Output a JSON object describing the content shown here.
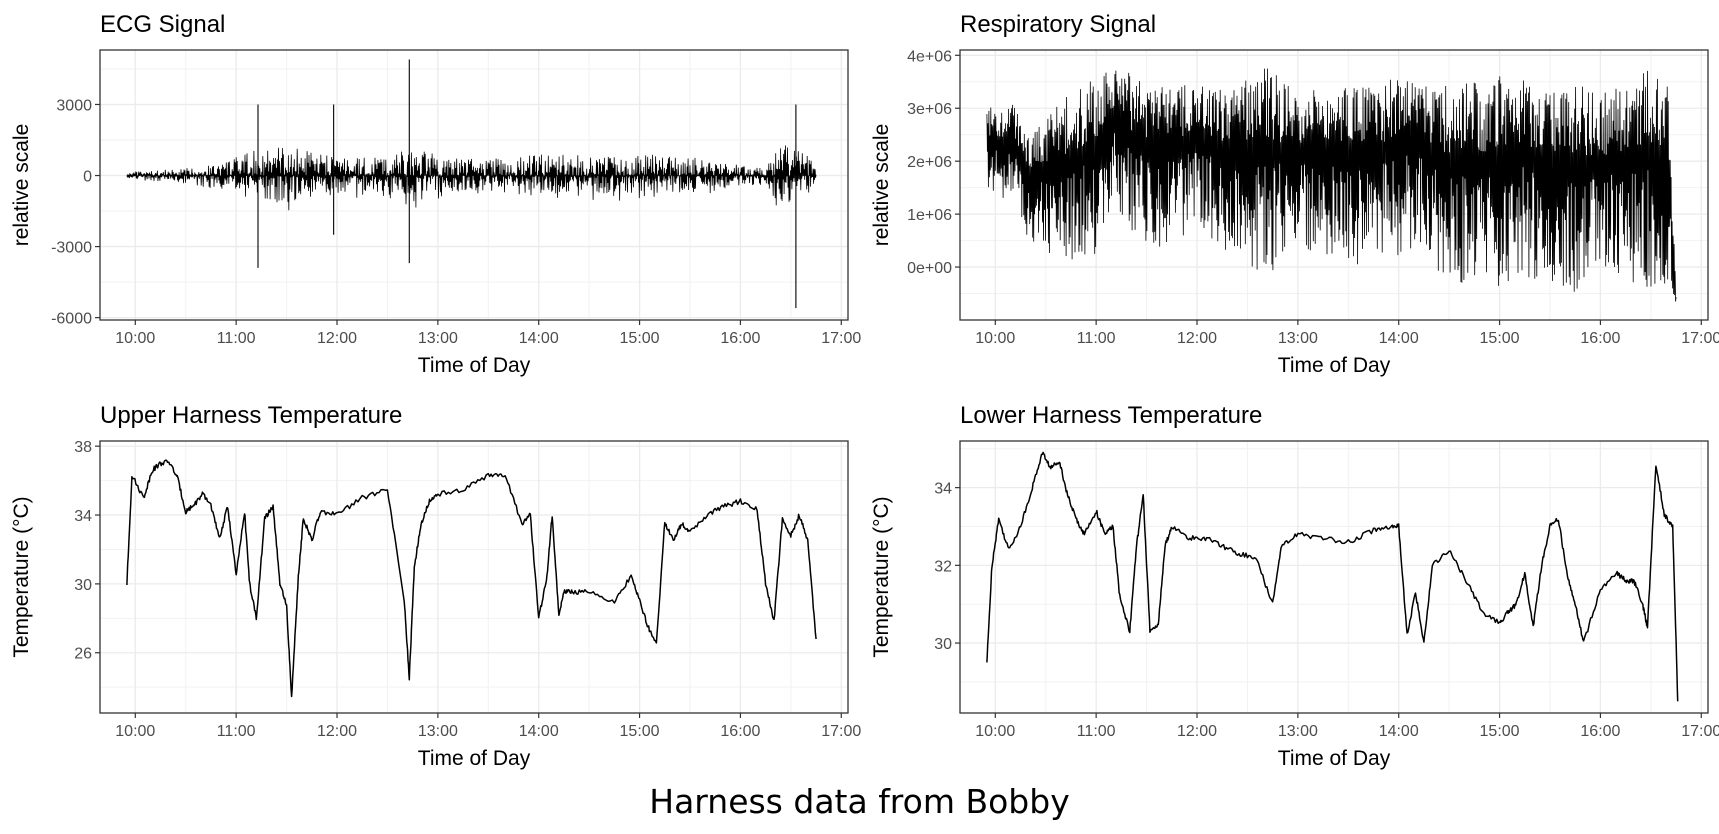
{
  "caption": "Harness data from Bobby",
  "chart_data": [
    {
      "type": "line",
      "title": "ECG Signal",
      "xlabel": "Time of Day",
      "ylabel": "relative scale",
      "x_ticks": [
        "10:00",
        "11:00",
        "12:00",
        "13:00",
        "14:00",
        "15:00",
        "16:00",
        "17:00"
      ],
      "y_ticks": [
        "3000",
        "0",
        "-3000",
        "-6000"
      ],
      "y_tick_values": [
        3000,
        0,
        -3000,
        -6000
      ],
      "xlim": [
        "09:39",
        "17:04"
      ],
      "ylim": [
        -6100,
        5300
      ],
      "grid": true,
      "style": "dense-oscillating",
      "series": [
        {
          "x": [
            "09:55",
            "10:30",
            "10:55",
            "11:15",
            "11:30",
            "11:45",
            "12:00",
            "12:30",
            "12:45",
            "13:00",
            "13:30",
            "14:00",
            "14:30",
            "15:00",
            "15:30",
            "16:00",
            "16:15",
            "16:20",
            "16:30",
            "16:40",
            "16:45"
          ],
          "center": [
            0,
            0,
            0,
            0,
            0,
            0,
            0,
            0,
            0,
            0,
            0,
            0,
            0,
            0,
            0,
            0,
            0,
            0,
            0,
            0,
            0
          ],
          "amplitude": [
            150,
            300,
            650,
            1200,
            1300,
            1000,
            800,
            850,
            1200,
            850,
            700,
            900,
            950,
            950,
            800,
            500,
            350,
            1200,
            1300,
            1000,
            200
          ]
        }
      ],
      "spikes": [
        {
          "x": "11:13",
          "min": -3900,
          "max": 3000
        },
        {
          "x": "11:58",
          "min": -2500,
          "max": 3000
        },
        {
          "x": "12:43",
          "min": -3700,
          "max": 4900
        },
        {
          "x": "16:33",
          "min": -5600,
          "max": 3000
        }
      ]
    },
    {
      "type": "line",
      "title": "Respiratory Signal",
      "xlabel": "Time of Day",
      "ylabel": "relative scale",
      "x_ticks": [
        "10:00",
        "11:00",
        "12:00",
        "13:00",
        "14:00",
        "15:00",
        "16:00",
        "17:00"
      ],
      "y_ticks": [
        "4e+06",
        "3e+06",
        "2e+06",
        "1e+06",
        "0e+00"
      ],
      "y_tick_values": [
        4000000,
        3000000,
        2000000,
        1000000,
        0
      ],
      "xlim": [
        "09:39",
        "17:04"
      ],
      "ylim": [
        -1000000,
        4100000
      ],
      "grid": true,
      "style": "dense-oscillating",
      "series": [
        {
          "x": [
            "09:55",
            "10:10",
            "10:20",
            "10:40",
            "11:00",
            "11:10",
            "11:20",
            "11:40",
            "12:00",
            "12:20",
            "12:40",
            "13:00",
            "13:20",
            "13:40",
            "14:00",
            "14:10",
            "14:30",
            "15:00",
            "15:10",
            "15:30",
            "15:45",
            "16:00",
            "16:20",
            "16:30",
            "16:40",
            "16:45"
          ],
          "top": [
            3000000,
            3100000,
            2500000,
            3200000,
            3600000,
            3800000,
            3700000,
            3400000,
            3500000,
            3400000,
            3850000,
            3300000,
            3400000,
            3400000,
            3700000,
            3600000,
            3400000,
            3600000,
            3700000,
            3300000,
            3500000,
            3300000,
            3500000,
            3800000,
            3500000,
            -500000
          ],
          "bottom": [
            1500000,
            1200000,
            500000,
            0,
            100000,
            1200000,
            500000,
            300000,
            800000,
            200000,
            -200000,
            300000,
            200000,
            0,
            200000,
            400000,
            -300000,
            -400000,
            -200000,
            -300000,
            -500000,
            -100000,
            -300000,
            -400000,
            -400000,
            -700000
          ]
        }
      ]
    },
    {
      "type": "line",
      "title": "Upper Harness Temperature",
      "xlabel": "Time of Day",
      "ylabel": "Temperature (°C)",
      "x_ticks": [
        "10:00",
        "11:00",
        "12:00",
        "13:00",
        "14:00",
        "15:00",
        "16:00",
        "17:00"
      ],
      "y_ticks": [
        "38",
        "34",
        "30",
        "26"
      ],
      "y_tick_values": [
        38,
        34,
        30,
        26
      ],
      "xlim": [
        "09:39",
        "17:04"
      ],
      "ylim": [
        22.5,
        38.3
      ],
      "grid": true,
      "series": [
        {
          "x": [
            "09:55",
            "09:58",
            "10:05",
            "10:10",
            "10:15",
            "10:20",
            "10:25",
            "10:30",
            "10:35",
            "10:40",
            "10:45",
            "10:50",
            "10:55",
            "11:00",
            "11:05",
            "11:08",
            "11:12",
            "11:17",
            "11:22",
            "11:26",
            "11:30",
            "11:33",
            "11:37",
            "11:40",
            "11:45",
            "11:50",
            "12:00",
            "12:15",
            "12:30",
            "12:40",
            "12:43",
            "12:46",
            "12:50",
            "12:55",
            "13:00",
            "13:15",
            "13:30",
            "13:40",
            "13:50",
            "13:55",
            "14:00",
            "14:05",
            "14:08",
            "14:12",
            "14:15",
            "14:20",
            "14:30",
            "14:45",
            "14:55",
            "15:00",
            "15:05",
            "15:10",
            "15:15",
            "15:20",
            "15:25",
            "15:30",
            "15:40",
            "15:50",
            "16:00",
            "16:10",
            "16:15",
            "16:20",
            "16:25",
            "16:30",
            "16:35",
            "16:40",
            "16:45"
          ],
          "y": [
            30.0,
            36.3,
            35.0,
            36.6,
            37.0,
            37.1,
            36.2,
            34.2,
            34.6,
            35.2,
            34.6,
            32.6,
            34.5,
            30.5,
            34.2,
            30.0,
            28.0,
            33.8,
            34.5,
            30.0,
            28.7,
            23.4,
            30.5,
            33.8,
            32.5,
            34.2,
            34.0,
            35.0,
            35.5,
            29.0,
            24.5,
            31.0,
            33.5,
            34.8,
            35.2,
            35.5,
            36.3,
            36.3,
            33.5,
            34.0,
            28.0,
            30.5,
            34.0,
            28.2,
            29.6,
            29.5,
            29.6,
            28.9,
            30.5,
            29.0,
            27.5,
            26.5,
            33.6,
            32.5,
            33.5,
            33.0,
            34.0,
            34.5,
            34.8,
            34.3,
            30.0,
            27.8,
            33.8,
            32.8,
            34.0,
            32.5,
            26.8
          ]
        }
      ]
    },
    {
      "type": "line",
      "title": "Lower Harness Temperature",
      "xlabel": "Time of Day",
      "ylabel": "Temperature (°C)",
      "x_ticks": [
        "10:00",
        "11:00",
        "12:00",
        "13:00",
        "14:00",
        "15:00",
        "16:00",
        "17:00"
      ],
      "y_ticks": [
        "34",
        "32",
        "30"
      ],
      "y_tick_values": [
        34,
        32,
        30
      ],
      "xlim": [
        "09:39",
        "17:04"
      ],
      "ylim": [
        28.2,
        35.2
      ],
      "grid": true,
      "series": [
        {
          "x": [
            "09:55",
            "09:58",
            "10:02",
            "10:08",
            "10:15",
            "10:22",
            "10:28",
            "10:33",
            "10:38",
            "10:43",
            "10:48",
            "10:53",
            "11:00",
            "11:05",
            "11:10",
            "11:14",
            "11:20",
            "11:24",
            "11:28",
            "11:32",
            "11:37",
            "11:41",
            "11:45",
            "11:55",
            "12:05",
            "12:15",
            "12:25",
            "12:35",
            "12:45",
            "12:50",
            "13:00",
            "13:15",
            "13:30",
            "13:45",
            "13:55",
            "14:00",
            "14:05",
            "14:10",
            "14:15",
            "14:20",
            "14:30",
            "14:40",
            "14:50",
            "15:00",
            "15:05",
            "15:10",
            "15:15",
            "15:20",
            "15:25",
            "15:30",
            "15:35",
            "15:40",
            "15:45",
            "15:50",
            "16:00",
            "16:10",
            "16:15",
            "16:20",
            "16:25",
            "16:28",
            "16:33",
            "16:38",
            "16:43",
            "16:46"
          ],
          "y": [
            29.5,
            32.0,
            33.2,
            32.4,
            33.0,
            34.0,
            34.9,
            34.5,
            34.7,
            33.8,
            33.2,
            32.8,
            33.4,
            32.8,
            33.0,
            31.2,
            30.3,
            32.5,
            33.8,
            30.3,
            30.5,
            32.5,
            33.0,
            32.7,
            32.7,
            32.5,
            32.3,
            32.2,
            31.0,
            32.5,
            32.8,
            32.7,
            32.6,
            32.9,
            33.0,
            33.0,
            30.2,
            31.3,
            30.0,
            32.0,
            32.4,
            31.6,
            30.8,
            30.5,
            30.8,
            31.0,
            31.8,
            30.4,
            32.0,
            33.0,
            33.2,
            31.8,
            31.0,
            30.0,
            31.4,
            31.8,
            31.6,
            31.6,
            31.0,
            30.4,
            34.6,
            33.3,
            33.0,
            28.5
          ]
        }
      ]
    }
  ]
}
